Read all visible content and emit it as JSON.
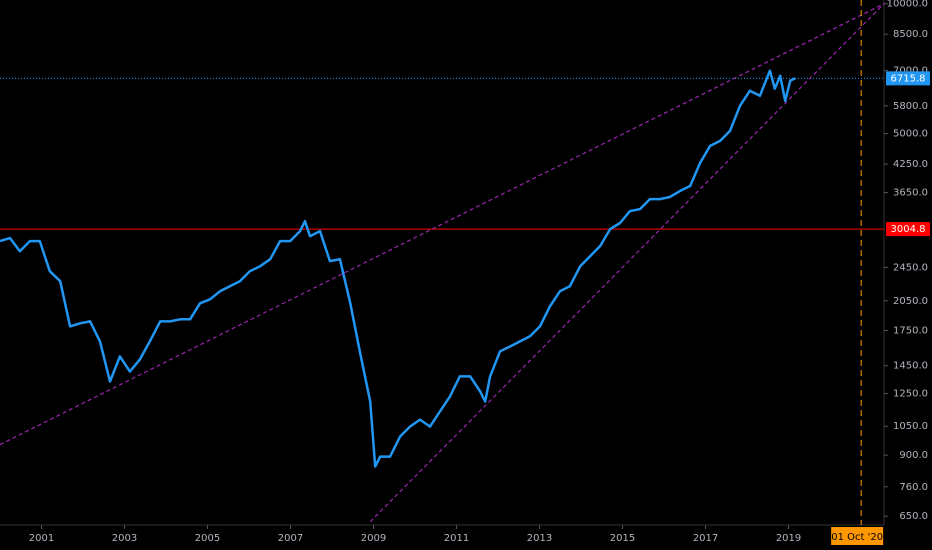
{
  "chart_data": {
    "type": "line",
    "log_scale": true,
    "xlim": [
      2000,
      2021.3
    ],
    "xticks": [
      2001,
      2003,
      2005,
      2007,
      2009,
      2011,
      2013,
      2015,
      2017,
      2019
    ],
    "ylim": [
      620,
      10200
    ],
    "yticks": [
      {
        "value": 650,
        "label": "650.0"
      },
      {
        "value": 760,
        "label": "760.0"
      },
      {
        "value": 900,
        "label": "900.0"
      },
      {
        "value": 1050,
        "label": "1050.0"
      },
      {
        "value": 1250,
        "label": "1250.0"
      },
      {
        "value": 1450,
        "label": "1450.0"
      },
      {
        "value": 1750,
        "label": "1750.0"
      },
      {
        "value": 2050,
        "label": "2050.0"
      },
      {
        "value": 2450,
        "label": "2450.0"
      },
      {
        "value": 3650,
        "label": "3650.0"
      },
      {
        "value": 4250,
        "label": "4250.0"
      },
      {
        "value": 5000,
        "label": "5000.0"
      },
      {
        "value": 5800,
        "label": "5800.0"
      },
      {
        "value": 7000,
        "label": "7000.0"
      },
      {
        "value": 8500,
        "label": "8500.0"
      },
      {
        "value": 10000,
        "label": "10000.0"
      }
    ],
    "series": [
      {
        "color": "#2196f3",
        "x": [
          2000,
          2000.24,
          2000.48,
          2000.72,
          2000.96,
          2001.2,
          2001.45,
          2001.69,
          2001.93,
          2002.17,
          2002.41,
          2002.65,
          2002.89,
          2003.13,
          2003.37,
          2003.61,
          2003.86,
          2004.1,
          2004.34,
          2004.58,
          2004.82,
          2005.06,
          2005.3,
          2005.54,
          2005.78,
          2006.02,
          2006.27,
          2006.51,
          2006.75,
          2006.99,
          2007.23,
          2007.35,
          2007.47,
          2007.71,
          2007.95,
          2008.19,
          2008.43,
          2008.67,
          2008.92,
          2009.04,
          2009.16,
          2009.4,
          2009.64,
          2009.88,
          2010.12,
          2010.36,
          2010.6,
          2010.84,
          2011.08,
          2011.33,
          2011.57,
          2011.69,
          2011.81,
          2012.05,
          2012.29,
          2012.53,
          2012.77,
          2013.01,
          2013.25,
          2013.49,
          2013.73,
          2013.98,
          2014.22,
          2014.46,
          2014.7,
          2014.94,
          2015.18,
          2015.42,
          2015.66,
          2015.9,
          2016.14,
          2016.39,
          2016.63,
          2016.87,
          2017.11,
          2017.35,
          2017.59,
          2017.83,
          2018.07,
          2018.31,
          2018.55,
          2018.67,
          2018.8,
          2018.92,
          2019.04,
          2019.16
        ],
        "values": [
          2819,
          2864,
          2671,
          2819,
          2819,
          2401,
          2276,
          1788,
          1818,
          1837,
          1651,
          1333,
          1524,
          1406,
          1500,
          1651,
          1837,
          1837,
          1857,
          1857,
          2023,
          2067,
          2157,
          2215,
          2276,
          2401,
          2465,
          2560,
          2819,
          2819,
          2973,
          3136,
          2894,
          2973,
          2533,
          2560,
          2044,
          1566,
          1198,
          847,
          893,
          893,
          994,
          1048,
          1088,
          1048,
          1136,
          1230,
          1370,
          1370,
          1264,
          1198,
          1370,
          1566,
          1607,
          1651,
          1696,
          1788,
          1990,
          2157,
          2215,
          2465,
          2602,
          2744,
          3005,
          3104,
          3308,
          3344,
          3527,
          3527,
          3567,
          3684,
          3783,
          4277,
          4685,
          4811,
          5075,
          5802,
          6286,
          6118,
          6996,
          6355,
          6809,
          5956,
          6629,
          6715.8
        ]
      }
    ],
    "hlines": [
      {
        "value": 6715.8,
        "color": "#2196f3",
        "style": "dotted"
      },
      {
        "value": 3004.8,
        "color": "#ff0000",
        "style": "solid"
      }
    ],
    "trendlines": [
      {
        "color": "#9c27b0",
        "x": [
          2000,
          2021.3
        ],
        "values": [
          952,
          10000
        ]
      },
      {
        "color": "#9c27b0",
        "x": [
          2008.92,
          2021.3
        ],
        "values": [
          631,
          10000
        ]
      }
    ],
    "vlines": [
      {
        "x": 2020.75,
        "label": "01 Oct '20",
        "color": "#ff9800"
      }
    ]
  }
}
